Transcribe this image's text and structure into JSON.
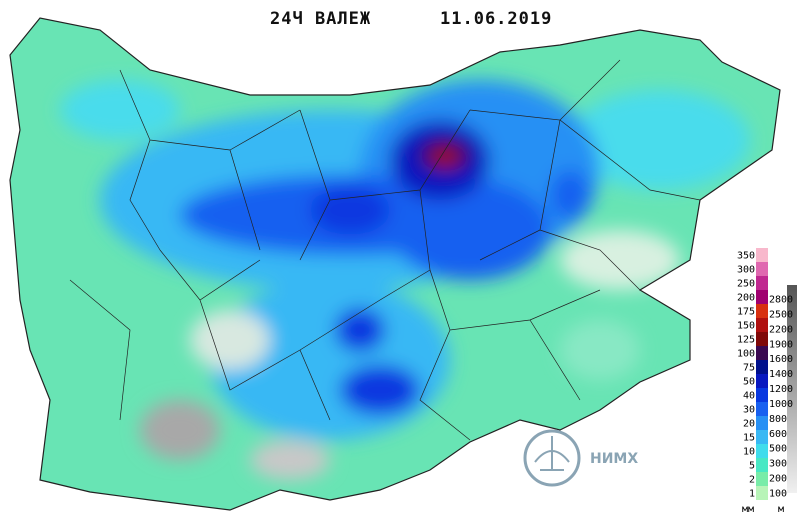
{
  "header": {
    "title": "24Ч ВАЛЕЖ",
    "date": "11.06.2019"
  },
  "legend": {
    "precipitation": {
      "unit": "мм",
      "values": [
        1,
        2,
        5,
        10,
        15,
        20,
        30,
        40,
        50,
        75,
        100,
        125,
        150,
        175,
        200,
        250,
        300,
        350
      ],
      "colors": [
        "#b8f4b8",
        "#78eca8",
        "#48e8c4",
        "#40dcec",
        "#38b8f4",
        "#2890f4",
        "#1860f0",
        "#0838e0",
        "#0818c0",
        "#00108c",
        "#3a0850",
        "#800808",
        "#b01010",
        "#d83010",
        "#a00070",
        "#c02890",
        "#e068b0",
        "#f8b8cc"
      ]
    },
    "elevation": {
      "unit": "м",
      "values": [
        100,
        200,
        300,
        500,
        600,
        800,
        1000,
        1200,
        1400,
        1600,
        1900,
        2200,
        2500,
        2800
      ]
    }
  },
  "logo": {
    "text": "НИМХ"
  }
}
